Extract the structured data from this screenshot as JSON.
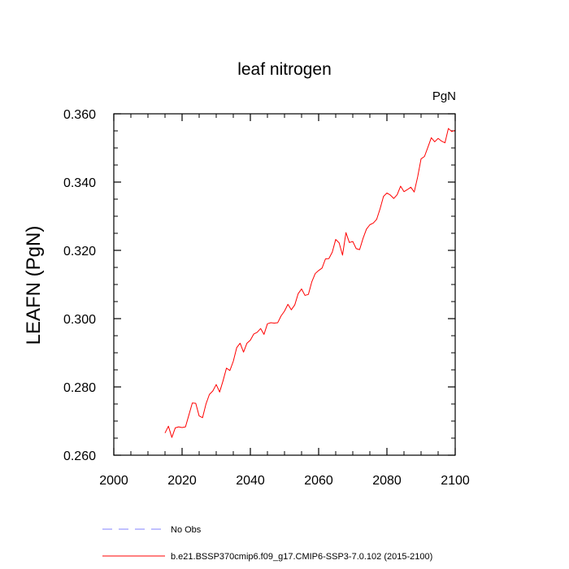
{
  "chart_data": {
    "type": "line",
    "title": "leaf nitrogen",
    "units_label": "PgN",
    "xlabel": "",
    "ylabel": "LEAFN  (PgN)",
    "xlim": [
      2000,
      2100
    ],
    "ylim": [
      0.26,
      0.36
    ],
    "x_ticks": [
      2000,
      2020,
      2040,
      2060,
      2080,
      2100
    ],
    "y_ticks": [
      "0.260",
      "0.280",
      "0.300",
      "0.320",
      "0.340",
      "0.360"
    ],
    "grid": false,
    "legend_position": "bottom-left",
    "series": [
      {
        "name": "No Obs",
        "color": "#8080ff",
        "dash": "dashed",
        "x": [],
        "y": []
      },
      {
        "name": "b.e21.BSSP370cmip6.f09_g17.CMIP6-SSP3-7.0.102 (2015-2100)",
        "color": "#ff0000",
        "dash": "solid",
        "x": [
          2015,
          2016,
          2017,
          2018,
          2019,
          2020,
          2021,
          2022,
          2023,
          2024,
          2025,
          2026,
          2027,
          2028,
          2029,
          2030,
          2031,
          2032,
          2033,
          2034,
          2035,
          2036,
          2037,
          2038,
          2039,
          2040,
          2041,
          2042,
          2043,
          2044,
          2045,
          2046,
          2047,
          2048,
          2049,
          2050,
          2051,
          2052,
          2053,
          2054,
          2055,
          2056,
          2057,
          2058,
          2059,
          2060,
          2061,
          2062,
          2063,
          2064,
          2065,
          2066,
          2067,
          2068,
          2069,
          2070,
          2071,
          2072,
          2073,
          2074,
          2075,
          2076,
          2077,
          2078,
          2079,
          2080,
          2081,
          2082,
          2083,
          2084,
          2085,
          2086,
          2087,
          2088,
          2089,
          2090,
          2091,
          2092,
          2093,
          2094,
          2095,
          2096,
          2097,
          2098,
          2099,
          2100
        ],
        "y": [
          0.2665,
          0.2685,
          0.2652,
          0.268,
          0.2683,
          0.2681,
          0.2683,
          0.2718,
          0.2753,
          0.2752,
          0.2715,
          0.271,
          0.275,
          0.2778,
          0.2788,
          0.2807,
          0.2785,
          0.2818,
          0.2855,
          0.2848,
          0.2875,
          0.2915,
          0.2928,
          0.2902,
          0.2928,
          0.2937,
          0.2955,
          0.296,
          0.2971,
          0.2954,
          0.2985,
          0.2988,
          0.2987,
          0.2988,
          0.3008,
          0.3022,
          0.3042,
          0.3026,
          0.304,
          0.3073,
          0.3087,
          0.3068,
          0.3071,
          0.3108,
          0.3132,
          0.3141,
          0.3148,
          0.3175,
          0.3176,
          0.3195,
          0.3232,
          0.3222,
          0.3186,
          0.3252,
          0.3223,
          0.3226,
          0.3205,
          0.3202,
          0.3235,
          0.3262,
          0.3275,
          0.328,
          0.3291,
          0.3322,
          0.3358,
          0.3368,
          0.3362,
          0.3352,
          0.3363,
          0.3388,
          0.3372,
          0.3378,
          0.3385,
          0.3371,
          0.3415,
          0.3468,
          0.3475,
          0.3502,
          0.353,
          0.3518,
          0.3528,
          0.352,
          0.3515,
          0.3557,
          0.3548,
          0.3552
        ]
      }
    ]
  }
}
